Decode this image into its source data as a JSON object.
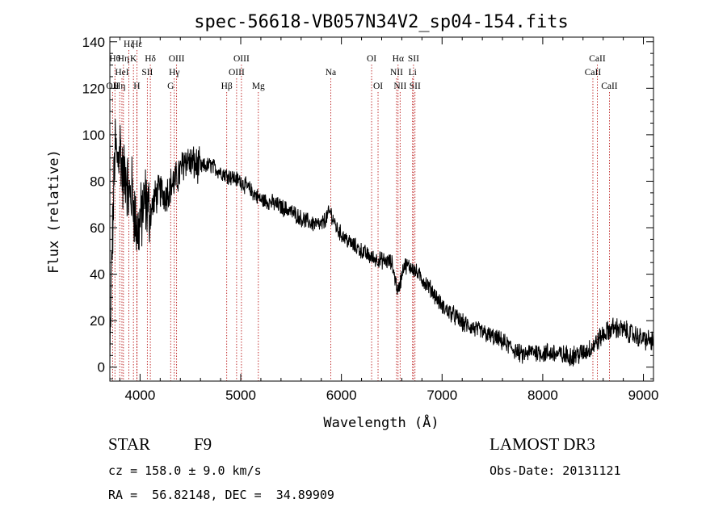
{
  "chart_data": {
    "type": "line",
    "title": "spec-56618-VB057N34V2_sp04-154.fits",
    "xlabel": "Wavelength (Å)",
    "ylabel": "Flux (relative)",
    "xlim": [
      3700,
      9100
    ],
    "ylim": [
      -6,
      142
    ],
    "xticks": [
      4000,
      5000,
      6000,
      7000,
      8000,
      9000
    ],
    "yticks": [
      0,
      20,
      40,
      60,
      80,
      100,
      120,
      140
    ],
    "grid": false,
    "spectrum_anchors": [
      [
        3700,
        -2
      ],
      [
        3715,
        40
      ],
      [
        3730,
        60
      ],
      [
        3750,
        95
      ],
      [
        3775,
        88
      ],
      [
        3800,
        97
      ],
      [
        3830,
        80
      ],
      [
        3860,
        85
      ],
      [
        3890,
        72
      ],
      [
        3920,
        76
      ],
      [
        3950,
        65
      ],
      [
        3970,
        58
      ],
      [
        4000,
        62
      ],
      [
        4050,
        72
      ],
      [
        4100,
        66
      ],
      [
        4150,
        73
      ],
      [
        4200,
        76
      ],
      [
        4250,
        74
      ],
      [
        4300,
        78
      ],
      [
        4350,
        80
      ],
      [
        4400,
        84
      ],
      [
        4450,
        90
      ],
      [
        4500,
        88
      ],
      [
        4600,
        86
      ],
      [
        4700,
        87
      ],
      [
        4800,
        84
      ],
      [
        4900,
        82
      ],
      [
        5000,
        80
      ],
      [
        5100,
        76
      ],
      [
        5200,
        72
      ],
      [
        5300,
        71
      ],
      [
        5400,
        69
      ],
      [
        5500,
        67
      ],
      [
        5600,
        64
      ],
      [
        5700,
        62
      ],
      [
        5800,
        61
      ],
      [
        5890,
        67
      ],
      [
        5950,
        60
      ],
      [
        6000,
        57
      ],
      [
        6100,
        53
      ],
      [
        6200,
        50
      ],
      [
        6300,
        47
      ],
      [
        6400,
        46
      ],
      [
        6500,
        45
      ],
      [
        6563,
        32
      ],
      [
        6620,
        44
      ],
      [
        6700,
        43
      ],
      [
        6800,
        38
      ],
      [
        6900,
        33
      ],
      [
        7000,
        26
      ],
      [
        7100,
        23
      ],
      [
        7200,
        19
      ],
      [
        7300,
        17
      ],
      [
        7400,
        15
      ],
      [
        7500,
        13
      ],
      [
        7600,
        11
      ],
      [
        7700,
        8
      ],
      [
        7800,
        5
      ],
      [
        7900,
        7
      ],
      [
        8000,
        6
      ],
      [
        8100,
        6
      ],
      [
        8200,
        5
      ],
      [
        8300,
        5
      ],
      [
        8400,
        6
      ],
      [
        8500,
        9
      ],
      [
        8600,
        14
      ],
      [
        8700,
        17
      ],
      [
        8800,
        16
      ],
      [
        8900,
        14
      ],
      [
        9000,
        12
      ],
      [
        9100,
        11
      ]
    ],
    "spectral_lines": [
      {
        "wavelength": 3727,
        "label": "OII",
        "row": 3
      },
      {
        "wavelength": 3750,
        "label": "Hθ",
        "row": 1
      },
      {
        "wavelength": 3798,
        "label": "Hη",
        "row": 3
      },
      {
        "wavelength": 3820,
        "label": "HeI",
        "row": 2
      },
      {
        "wavelength": 3835,
        "label": "Hη",
        "row": 1
      },
      {
        "wavelength": 3889,
        "label": "Hζ",
        "row": 0
      },
      {
        "wavelength": 3934,
        "label": "K",
        "row": 1
      },
      {
        "wavelength": 3968,
        "label": "H",
        "row": 3
      },
      {
        "wavelength": 3970,
        "label": "Hε",
        "row": 0
      },
      {
        "wavelength": 4072,
        "label": "SII",
        "row": 2
      },
      {
        "wavelength": 4102,
        "label": "Hδ",
        "row": 1
      },
      {
        "wavelength": 4304,
        "label": "G",
        "row": 3
      },
      {
        "wavelength": 4340,
        "label": "Hγ",
        "row": 2
      },
      {
        "wavelength": 4363,
        "label": "OIII",
        "row": 1
      },
      {
        "wavelength": 4861,
        "label": "Hβ",
        "row": 3
      },
      {
        "wavelength": 4959,
        "label": "OIII",
        "row": 2
      },
      {
        "wavelength": 5007,
        "label": "OIII",
        "row": 1
      },
      {
        "wavelength": 5175,
        "label": "Mg",
        "row": 3
      },
      {
        "wavelength": 5894,
        "label": "Na",
        "row": 2
      },
      {
        "wavelength": 6300,
        "label": "OI",
        "row": 1
      },
      {
        "wavelength": 6364,
        "label": "OI",
        "row": 3
      },
      {
        "wavelength": 6548,
        "label": "NII",
        "row": 2
      },
      {
        "wavelength": 6563,
        "label": "Hα",
        "row": 1
      },
      {
        "wavelength": 6583,
        "label": "NII",
        "row": 3
      },
      {
        "wavelength": 6707,
        "label": "Li",
        "row": 2
      },
      {
        "wavelength": 6716,
        "label": "SII",
        "row": 1
      },
      {
        "wavelength": 6731,
        "label": "SII",
        "row": 3
      },
      {
        "wavelength": 8498,
        "label": "CaII",
        "row": 2
      },
      {
        "wavelength": 8542,
        "label": "CaII",
        "row": 1
      },
      {
        "wavelength": 8662,
        "label": "CaII",
        "row": 3
      }
    ]
  },
  "info": {
    "object_class": "STAR",
    "subclass": "F9",
    "survey": "LAMOST DR3",
    "redshift_text": "cz = 158.0 ± 9.0 km/s",
    "obs_date_text": "Obs-Date: 20131121",
    "coords_text": "RA =  56.82148, DEC =  34.89909"
  },
  "colors": {
    "spectrum": "#000000",
    "line_markers": "#b30000",
    "axes": "#000000"
  }
}
